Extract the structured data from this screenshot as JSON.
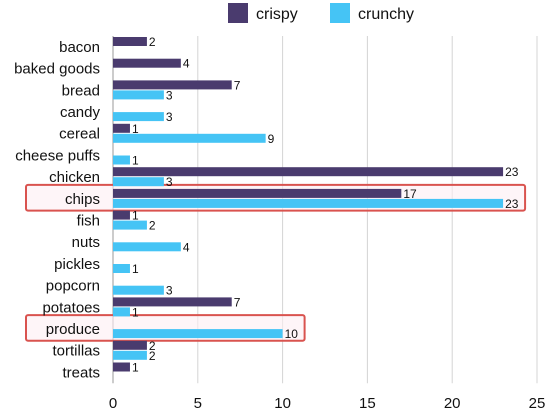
{
  "chart_data": {
    "type": "bar",
    "orientation": "horizontal",
    "categories": [
      "bacon",
      "baked goods",
      "bread",
      "candy",
      "cereal",
      "cheese puffs",
      "chicken",
      "chips",
      "fish",
      "nuts",
      "pickles",
      "popcorn",
      "potatoes",
      "produce",
      "tortillas",
      "treats"
    ],
    "series": [
      {
        "name": "crispy",
        "color": "#4a3b6e",
        "values": [
          2,
          4,
          7,
          null,
          1,
          null,
          23,
          17,
          1,
          null,
          null,
          null,
          7,
          null,
          2,
          1
        ]
      },
      {
        "name": "crunchy",
        "color": "#45c4f5",
        "values": [
          null,
          null,
          3,
          3,
          9,
          1,
          3,
          23,
          2,
          4,
          1,
          3,
          1,
          10,
          2,
          null
        ]
      }
    ],
    "xlim": [
      0,
      25
    ],
    "xticks": [
      0,
      5,
      10,
      15,
      20,
      25
    ],
    "grid": "vertical",
    "legend": "top-center",
    "highlighted_categories": [
      "chips",
      "produce"
    ],
    "highlight_color": "#d9534f"
  }
}
